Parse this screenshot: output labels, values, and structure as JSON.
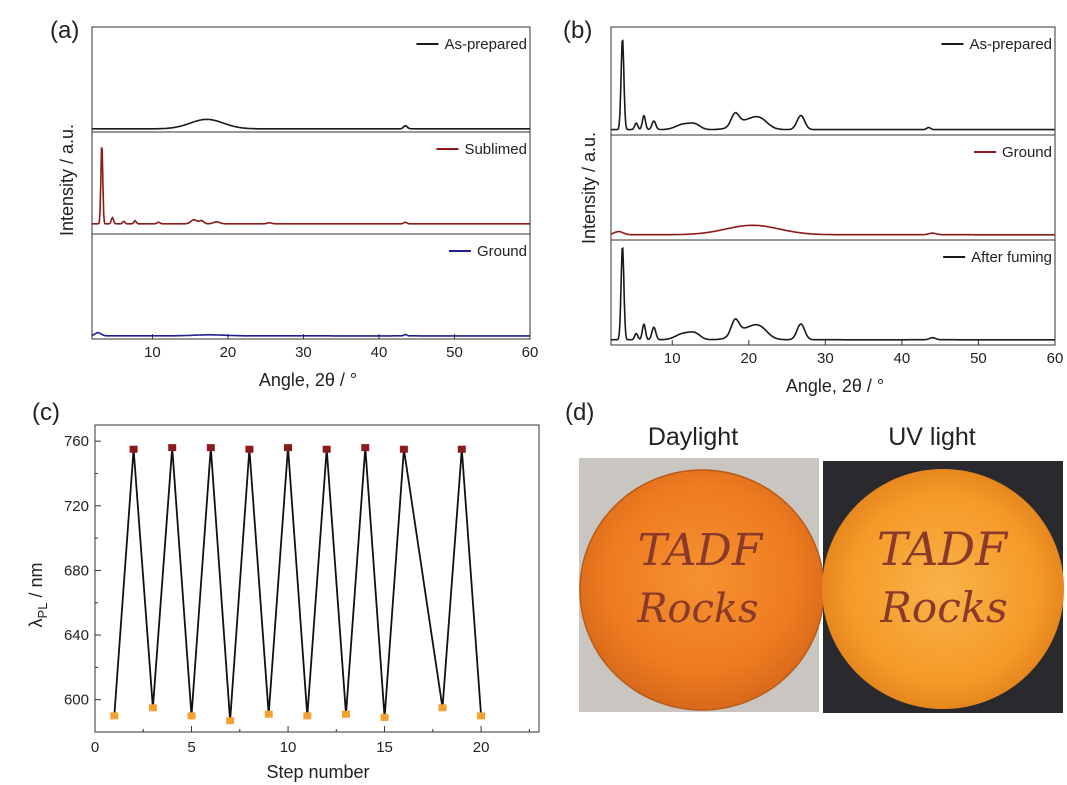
{
  "chart_data": [
    {
      "panel": "(a)",
      "type": "line",
      "xlabel": "Angle, 2θ / °",
      "ylabel": "Intensity / a.u.",
      "xlim": [
        2,
        60
      ],
      "xticks": [
        10,
        20,
        30,
        40,
        50,
        60
      ],
      "stacked": true,
      "series": [
        {
          "name": "As-prepared",
          "color": "#1a1a1a",
          "baseline": 0.03,
          "peaks": [
            [
              17.2,
              0.09,
              2.2
            ],
            [
              43.5,
              0.03,
              0.25
            ]
          ]
        },
        {
          "name": "Sublimed",
          "color": "#8b1a1a",
          "baseline": 0.1,
          "peaks": [
            [
              3.3,
              0.8,
              0.12
            ],
            [
              4.7,
              0.06,
              0.15
            ],
            [
              6.2,
              0.025,
              0.15
            ],
            [
              7.7,
              0.03,
              0.15
            ],
            [
              10.8,
              0.015,
              0.2
            ],
            [
              15.5,
              0.04,
              0.4
            ],
            [
              16.5,
              0.03,
              0.3
            ],
            [
              18.5,
              0.02,
              0.4
            ],
            [
              25.5,
              0.01,
              0.3
            ],
            [
              43.5,
              0.015,
              0.2
            ]
          ]
        },
        {
          "name": "Ground",
          "color": "#1f1f8f",
          "baseline": 0.03,
          "peaks": [
            [
              2.8,
              0.03,
              0.4
            ],
            [
              17.5,
              0.01,
              2.0
            ],
            [
              43.5,
              0.012,
              0.2
            ]
          ]
        }
      ]
    },
    {
      "panel": "(b)",
      "type": "line",
      "xlabel": "Angle, 2θ / °",
      "ylabel": "Intensity / a.u.",
      "xlim": [
        2,
        60
      ],
      "xticks": [
        10,
        20,
        30,
        40,
        50,
        60
      ],
      "stacked": true,
      "series": [
        {
          "name": "As-prepared",
          "color": "#1a1a1a",
          "baseline": 0.05,
          "peaks": [
            [
              3.5,
              0.85,
              0.18
            ],
            [
              5.3,
              0.06,
              0.2
            ],
            [
              6.3,
              0.13,
              0.2
            ],
            [
              7.6,
              0.08,
              0.25
            ],
            [
              11.5,
              0.05,
              1.0
            ],
            [
              13.0,
              0.04,
              0.7
            ],
            [
              18.2,
              0.11,
              0.5
            ],
            [
              19.8,
              0.08,
              1.5
            ],
            [
              21.5,
              0.07,
              1.0
            ],
            [
              26.8,
              0.13,
              0.5
            ],
            [
              43.5,
              0.02,
              0.25
            ]
          ]
        },
        {
          "name": "Ground",
          "color": "#8b1a1a",
          "baseline": 0.05,
          "peaks": [
            [
              3.0,
              0.03,
              0.6
            ],
            [
              20.5,
              0.09,
              3.5
            ],
            [
              44,
              0.015,
              0.5
            ]
          ]
        },
        {
          "name": "After fuming",
          "color": "#1a1a1a",
          "baseline": 0.05,
          "peaks": [
            [
              3.5,
              0.9,
              0.18
            ],
            [
              5.3,
              0.06,
              0.2
            ],
            [
              6.3,
              0.15,
              0.2
            ],
            [
              7.6,
              0.12,
              0.25
            ],
            [
              11.5,
              0.06,
              1.0
            ],
            [
              13.0,
              0.05,
              0.7
            ],
            [
              18.2,
              0.14,
              0.5
            ],
            [
              19.8,
              0.1,
              1.5
            ],
            [
              21.5,
              0.08,
              1.0
            ],
            [
              26.8,
              0.15,
              0.5
            ],
            [
              44,
              0.02,
              0.4
            ]
          ]
        }
      ]
    },
    {
      "panel": "(c)",
      "type": "line",
      "xlabel": "Step number",
      "ylabel": "λPL / nm",
      "xlim": [
        0,
        23
      ],
      "ylim": [
        580,
        770
      ],
      "xticks": [
        0,
        5,
        10,
        15,
        20
      ],
      "yticks": [
        600,
        640,
        680,
        720,
        760
      ],
      "line_color": "#111111",
      "high_color": "#8b1a1a",
      "low_color": "#f5a130",
      "x": [
        1,
        2,
        3,
        4,
        5,
        6,
        7,
        8,
        9,
        10,
        11,
        12,
        13,
        14,
        15,
        16,
        18,
        19,
        20
      ],
      "y": [
        590,
        755,
        595,
        756,
        590,
        756,
        587,
        755,
        591,
        756,
        590,
        755,
        591,
        756,
        589,
        755,
        595,
        755,
        590
      ]
    }
  ],
  "labels": {
    "a": "(a)",
    "b": "(b)",
    "c": "(c)",
    "d": "(d)",
    "ylabel_c_main": "λ",
    "ylabel_c_sub": "PL",
    "ylabel_c_rest": " / nm"
  },
  "photos": {
    "left_title": "Daylight",
    "right_title": "UV light",
    "left_text_line1": "TADF",
    "left_text_line2": "Rocks",
    "right_text_line1": "TADF",
    "right_text_line2": "Rocks",
    "left_bg": "#c9c6c2",
    "left_disc": "#f07a1c",
    "right_bg": "#2a2a2e",
    "right_disc": "#f59a28",
    "ink": "#8a3a2a"
  }
}
